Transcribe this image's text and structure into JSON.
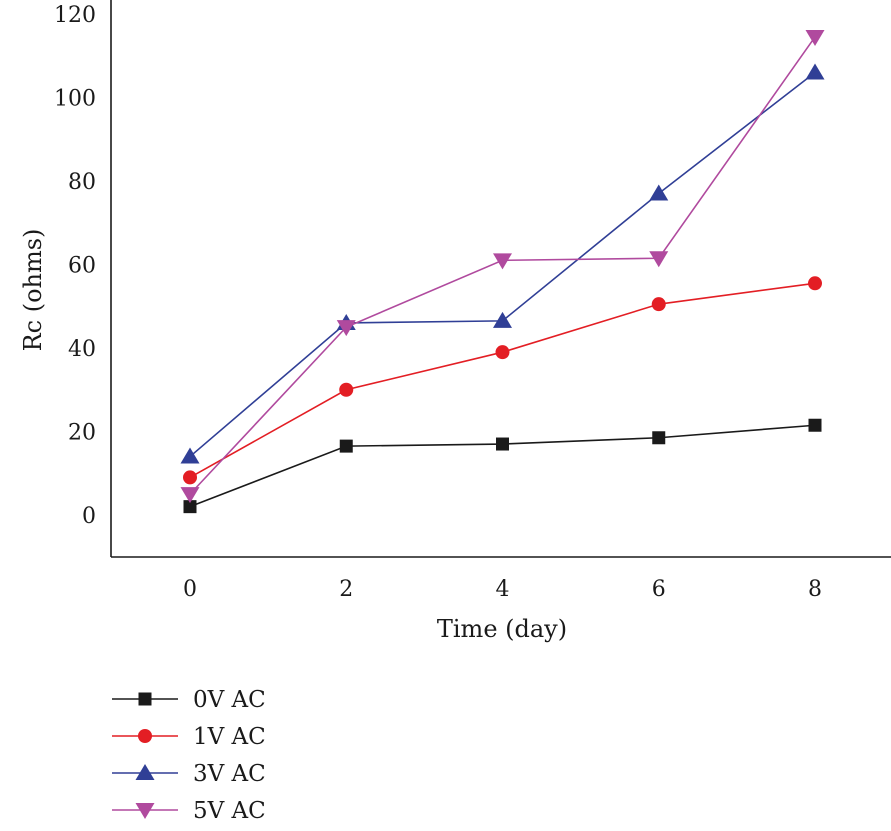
{
  "chart_data": {
    "type": "line",
    "title": "",
    "xlabel": "Time (day)",
    "ylabel": "Rc (ohms)",
    "x": [
      0,
      2,
      4,
      6,
      8
    ],
    "x_ticks": [
      "0",
      "2",
      "4",
      "6",
      "8"
    ],
    "y_ticks": [
      "0",
      "20",
      "40",
      "60",
      "80",
      "100",
      "120"
    ],
    "xlim": [
      -1,
      9
    ],
    "ylim": [
      -10,
      120
    ],
    "grid": false,
    "legend_position": "bottom-left",
    "series": [
      {
        "name": "0V AC",
        "values": [
          2,
          16.5,
          17,
          18.5,
          21.5
        ],
        "color": "#1a1a1a",
        "marker": "square"
      },
      {
        "name": "1V AC",
        "values": [
          9,
          30,
          39,
          50.5,
          55.5
        ],
        "color": "#e31e24",
        "marker": "circle"
      },
      {
        "name": "3V AC",
        "values": [
          14,
          46,
          46.5,
          77,
          106
        ],
        "color": "#303f96",
        "marker": "triangle-up"
      },
      {
        "name": "5V AC",
        "values": [
          5,
          45,
          61,
          61.5,
          114.5
        ],
        "color": "#b04a9e",
        "marker": "triangle-down"
      }
    ]
  }
}
